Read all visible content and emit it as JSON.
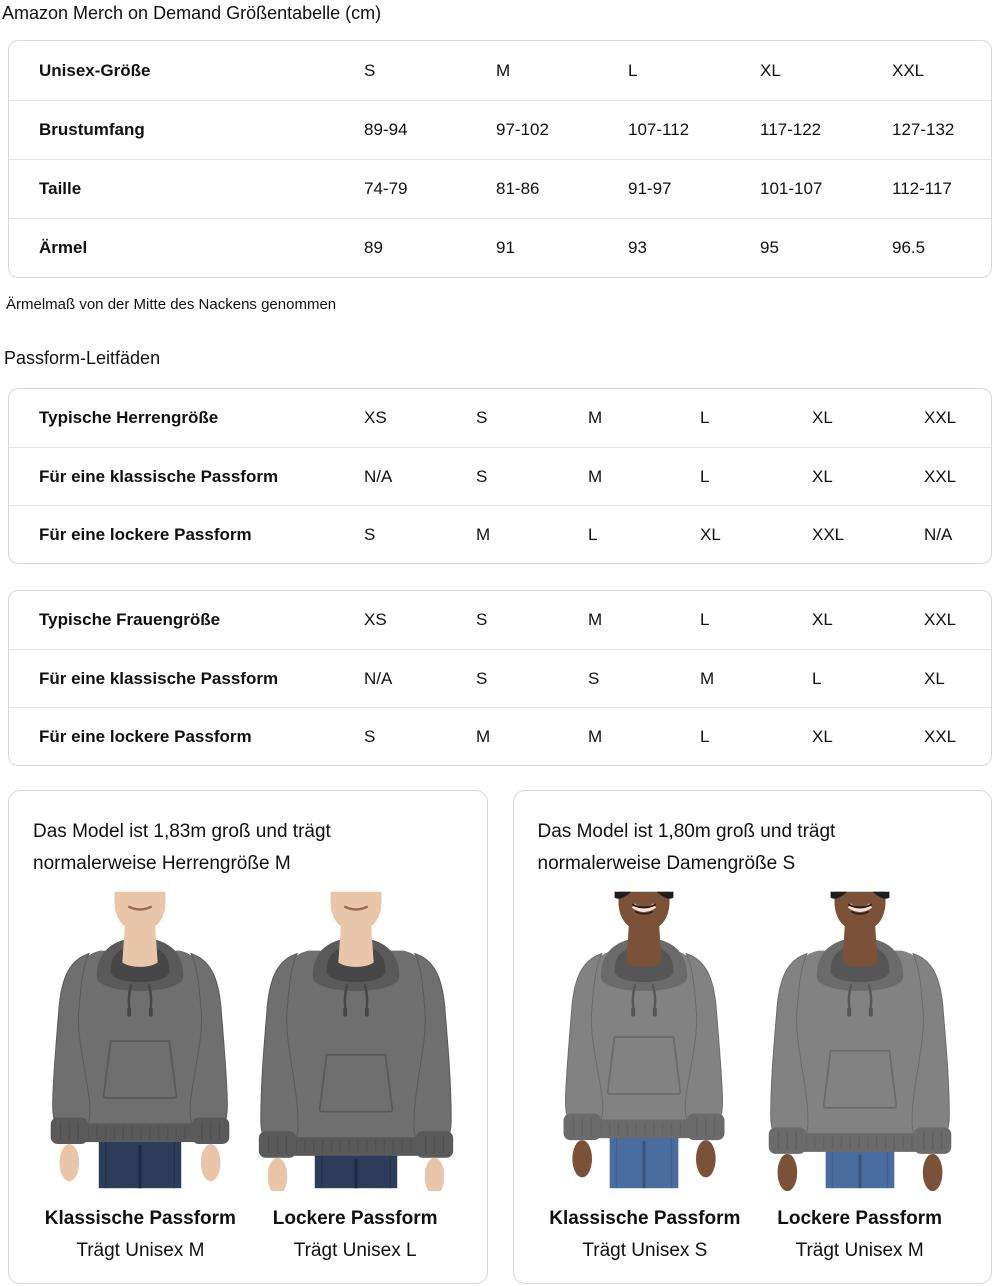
{
  "title": "Amazon Merch on Demand Größentabelle (cm)",
  "size_table": {
    "rows": [
      {
        "label": "Unisex-Größe",
        "values": [
          "S",
          "M",
          "L",
          "XL",
          "XXL"
        ]
      },
      {
        "label": "Brustumfang",
        "values": [
          "89-94",
          "97-102",
          "107-112",
          "117-122",
          "127-132"
        ]
      },
      {
        "label": "Taille",
        "values": [
          "74-79",
          "81-86",
          "91-97",
          "101-107",
          "112-117"
        ]
      },
      {
        "label": "Ärmel",
        "values": [
          "89",
          "91",
          "93",
          "95",
          "96.5"
        ]
      }
    ]
  },
  "note": "Ärmelmaß von der Mitte des Nackens genommen",
  "fit_section_title": "Passform-Leitfäden",
  "fit_tables": [
    {
      "rows": [
        {
          "label": "Typische Herrengröße",
          "values": [
            "XS",
            "S",
            "M",
            "L",
            "XL",
            "XXL"
          ]
        },
        {
          "label": "Für eine klassische Passform",
          "values": [
            "N/A",
            "S",
            "M",
            "L",
            "XL",
            "XXL"
          ]
        },
        {
          "label": "Für eine lockere Passform",
          "values": [
            "S",
            "M",
            "L",
            "XL",
            "XXL",
            "N/A"
          ]
        }
      ]
    },
    {
      "rows": [
        {
          "label": "Typische Frauengröße",
          "values": [
            "XS",
            "S",
            "M",
            "L",
            "XL",
            "XXL"
          ]
        },
        {
          "label": "Für eine klassische Passform",
          "values": [
            "N/A",
            "S",
            "S",
            "M",
            "L",
            "XL"
          ]
        },
        {
          "label": "Für eine lockere Passform",
          "values": [
            "S",
            "M",
            "M",
            "L",
            "XL",
            "XXL"
          ]
        }
      ]
    }
  ],
  "model_cards": [
    {
      "description": "Das Model ist 1,83m groß und trägt normalerweise Herrengröße M",
      "photos": [
        {
          "model": "male",
          "fit": "classic",
          "fit_label": "Klassische Passform",
          "size_label": "Trägt Unisex M"
        },
        {
          "model": "male",
          "fit": "loose",
          "fit_label": "Lockere Passform",
          "size_label": "Trägt Unisex L"
        }
      ]
    },
    {
      "description": "Das Model ist 1,80m groß und trägt normalerweise Damengröße S",
      "photos": [
        {
          "model": "female",
          "fit": "classic",
          "fit_label": "Klassische Passform",
          "size_label": "Trägt Unisex S"
        },
        {
          "model": "female",
          "fit": "loose",
          "fit_label": "Lockere Passform",
          "size_label": "Trägt Unisex M"
        }
      ]
    }
  ],
  "colors": {
    "text": "#0f1111",
    "panel_border": "#d5d9d9",
    "row_divider": "#e3e6e6",
    "hoodie_male": "#6f6f6f",
    "hoodie_male_shade": "#5a5a5a",
    "hoodie_male_dark": "#474747",
    "hoodie_female": "#828282",
    "hoodie_female_shade": "#6b6b6b",
    "hoodie_female_dark": "#565656",
    "skin_male": "#e9c6aa",
    "skin_female": "#7b5138",
    "mouth_male": "#9c6b52",
    "mouth_female": "#30190f",
    "teeth_female": "#efe7df",
    "hair_female": "#221d1a",
    "jeans_male": "#2c3d5a",
    "jeans_male_line": "#1d2b42",
    "jeans_female": "#4a6da0",
    "jeans_female_line": "#36547f"
  }
}
